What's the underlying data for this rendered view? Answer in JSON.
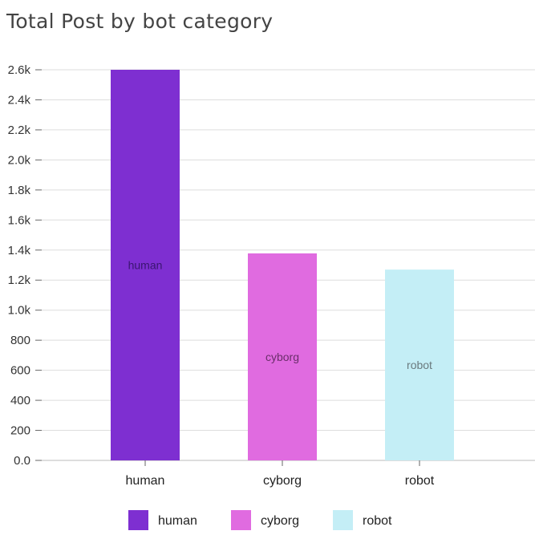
{
  "chart_data": {
    "type": "bar",
    "title": "Total Post by bot category",
    "categories": [
      "human",
      "cyborg",
      "robot"
    ],
    "values": [
      2600,
      1378,
      1270
    ],
    "colors": [
      "#7e2fd1",
      "#e06be0",
      "#c4eef6"
    ],
    "bar_label_colors": [
      "#3a1570",
      "#6a2e6a",
      "#6a7a7e"
    ],
    "y_ticks": [
      0,
      200,
      400,
      600,
      800,
      1000,
      1200,
      1400,
      1600,
      1800,
      2000,
      2200,
      2400,
      2600
    ],
    "y_tick_labels": [
      "0.0",
      "200",
      "400",
      "600",
      "800",
      "1.0k",
      "1.2k",
      "1.4k",
      "1.6k",
      "1.8k",
      "2.0k",
      "2.2k",
      "2.4k",
      "2.6k"
    ],
    "ylim": [
      0,
      2600
    ],
    "grid": true,
    "legend": {
      "placement": "bottom",
      "entries": [
        "human",
        "cyborg",
        "robot"
      ]
    }
  }
}
